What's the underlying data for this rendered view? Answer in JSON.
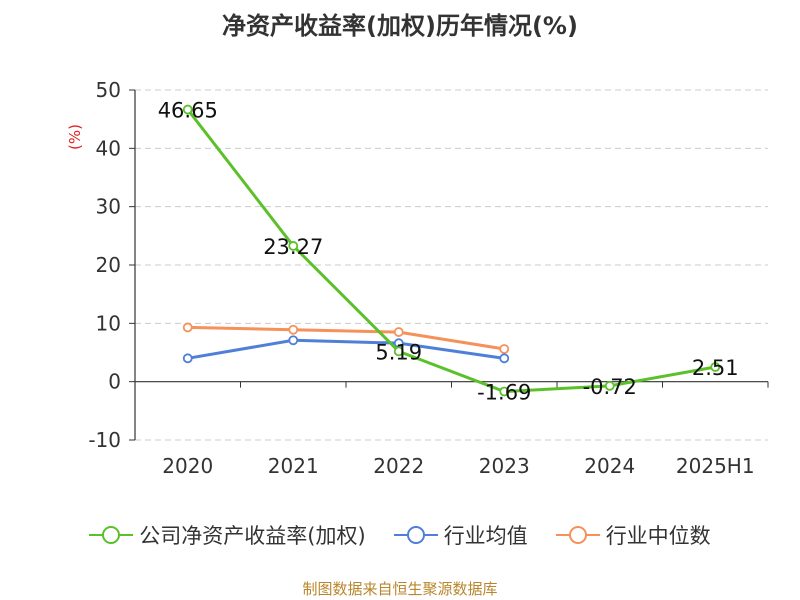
{
  "chart_data": {
    "type": "line",
    "title": "净资产收益率(加权)历年情况(%)",
    "ylabel": "(%)",
    "categories": [
      "2020",
      "2021",
      "2022",
      "2023",
      "2024",
      "2025H1"
    ],
    "ylim": [
      -10,
      50
    ],
    "yticks": [
      -10,
      0,
      10,
      20,
      30,
      40,
      50
    ],
    "grid": true,
    "legend_position": "bottom",
    "series": [
      {
        "name": "公司净资产收益率(加权)",
        "color": "#5bc12a",
        "values": [
          46.65,
          23.27,
          5.19,
          -1.69,
          -0.72,
          2.51
        ],
        "labels": [
          "46.65",
          "23.27",
          "5.19",
          "-1.69",
          "-0.72",
          "2.51"
        ]
      },
      {
        "name": "行业均值",
        "color": "#4f7fd8",
        "values": [
          4.0,
          7.1,
          6.6,
          4.0,
          null,
          null
        ]
      },
      {
        "name": "行业中位数",
        "color": "#f5915a",
        "values": [
          9.3,
          8.9,
          8.5,
          5.6,
          null,
          null
        ]
      }
    ]
  },
  "source": "制图数据来自恒生聚源数据库"
}
